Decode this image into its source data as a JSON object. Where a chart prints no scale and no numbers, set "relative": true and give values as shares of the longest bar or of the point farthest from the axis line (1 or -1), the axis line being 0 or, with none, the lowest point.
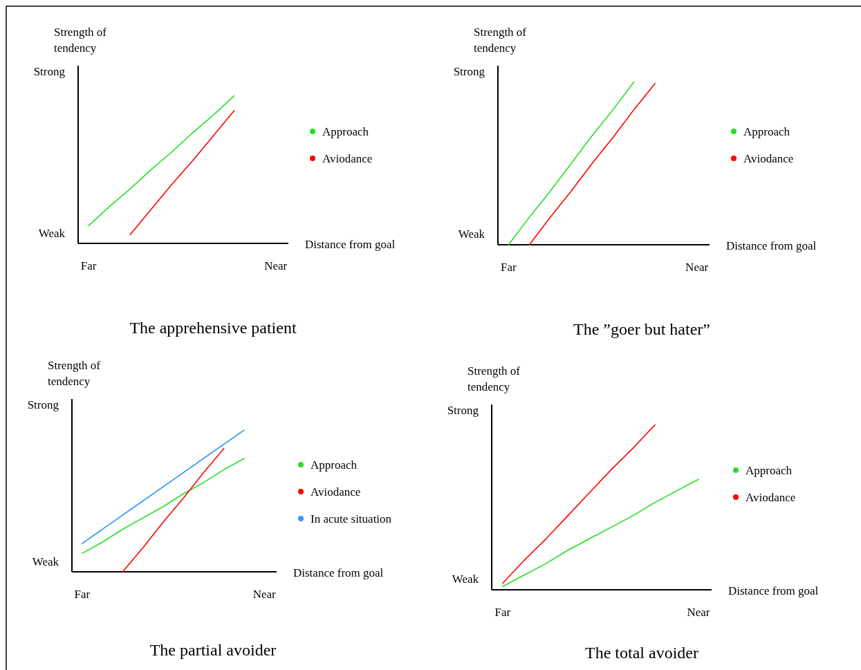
{
  "chart_data": [
    {
      "type": "line",
      "title": "The apprehensive patient",
      "xlabel": "Distance from goal",
      "ylabel": "Strength of tendency",
      "relative": true,
      "categories": [
        "Far",
        null,
        null,
        null,
        null,
        null,
        null,
        null,
        null,
        "Near"
      ],
      "annotations": [
        "Weak",
        "Strong"
      ],
      "legend": "right",
      "marker": "none",
      "series": [
        {
          "name": "Approach",
          "color": "#22e022",
          "values": [
            0.12,
            0.25,
            0.37,
            0.5,
            0.62,
            0.75,
            0.87,
            1,
            null,
            null
          ]
        },
        {
          "name": "Aviodance",
          "color": "#ff0000",
          "values": [
            null,
            null,
            0.06,
            0.23,
            0.4,
            0.56,
            0.73,
            0.9,
            null,
            null
          ]
        }
      ]
    },
    {
      "type": "line",
      "title": "The ”goer but hater”",
      "xlabel": "Distance from goal",
      "ylabel": "Strength of tendency",
      "relative": true,
      "categories": [
        "Far",
        null,
        null,
        null,
        null,
        null,
        null,
        null,
        null,
        "Near"
      ],
      "annotations": [
        "Weak",
        "Strong"
      ],
      "legend": "right",
      "marker": "none",
      "series": [
        {
          "name": "Approach",
          "color": "#22e022",
          "values": [
            0,
            0.17,
            0.33,
            0.5,
            0.67,
            0.83,
            1,
            null,
            null,
            null
          ]
        },
        {
          "name": "Aviodance",
          "color": "#ff0000",
          "values": [
            null,
            0,
            0.17,
            0.33,
            0.5,
            0.66,
            0.83,
            0.99,
            null,
            null
          ]
        }
      ]
    },
    {
      "type": "line",
      "title": "The partial avoider",
      "xlabel": "Distance from goal",
      "ylabel": "Strength of tendency",
      "relative": true,
      "categories": [
        "Far",
        null,
        null,
        null,
        null,
        null,
        null,
        null,
        null,
        "Near"
      ],
      "annotations": [
        "Weak",
        "Strong"
      ],
      "legend": "right",
      "marker": "none",
      "series": [
        {
          "name": "Approach",
          "color": "#22e022",
          "values": [
            0.13,
            0.21,
            0.3,
            0.38,
            0.46,
            0.55,
            0.63,
            0.72,
            0.8,
            null
          ]
        },
        {
          "name": "Aviodance",
          "color": "#ff0000",
          "values": [
            null,
            null,
            0,
            0.17,
            0.35,
            0.52,
            0.7,
            0.87,
            null,
            null
          ]
        },
        {
          "name": "In acute situation",
          "color": "#3399ff",
          "values": [
            0.2,
            0.3,
            0.4,
            0.5,
            0.6,
            0.7,
            0.8,
            0.9,
            1,
            null
          ]
        }
      ]
    },
    {
      "type": "line",
      "title": "The total avoider",
      "xlabel": "Distance from goal",
      "ylabel": "Strength of tendency",
      "relative": true,
      "categories": [
        "Far",
        null,
        null,
        null,
        null,
        null,
        null,
        null,
        null,
        "Near"
      ],
      "annotations": [
        "Weak",
        "Strong"
      ],
      "legend": "right",
      "marker": "none",
      "series": [
        {
          "name": "Approach",
          "color": "#22e022",
          "values": [
            0.02,
            0.09,
            0.16,
            0.24,
            0.31,
            0.38,
            0.45,
            0.53,
            0.6,
            0.67
          ]
        },
        {
          "name": "Aviodance",
          "color": "#ff0000",
          "values": [
            0.04,
            0.18,
            0.31,
            0.45,
            0.59,
            0.73,
            0.86,
            1,
            null,
            null
          ]
        }
      ]
    }
  ]
}
